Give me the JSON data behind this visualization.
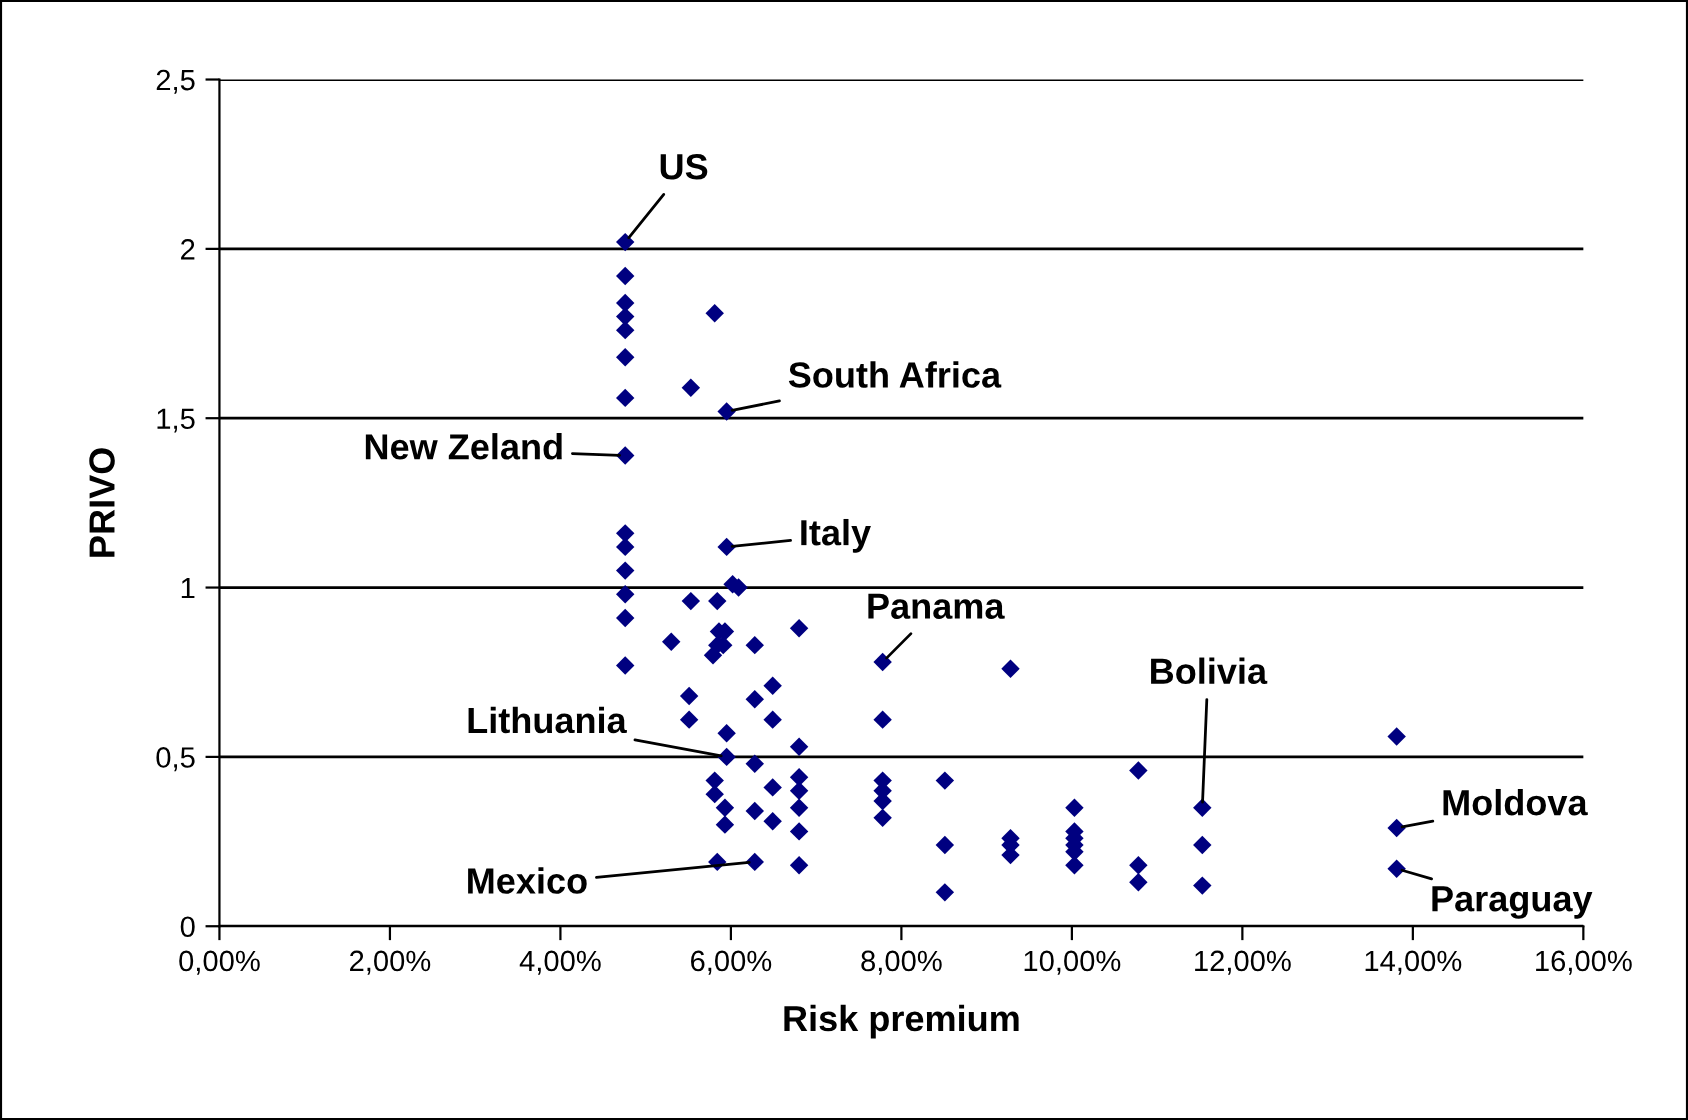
{
  "chart_data": {
    "type": "scatter",
    "xlabel": "Risk premium",
    "ylabel": "PRIVO",
    "series": [
      {
        "color": "#000080",
        "x": [
          4.76,
          4.76,
          4.76,
          4.76,
          4.76,
          4.76,
          4.76,
          4.76,
          4.76,
          4.76,
          4.76,
          4.76,
          4.76,
          4.76,
          5.81,
          5.53,
          5.95,
          5.95,
          5.53,
          5.84,
          6.02,
          6.09,
          5.3,
          5.86,
          5.84,
          5.91,
          5.93,
          5.79,
          6.28,
          6.8,
          5.51,
          5.51,
          6.49,
          6.28,
          6.49,
          5.95,
          5.95,
          6.28,
          6.8,
          5.81,
          5.81,
          5.93,
          5.93,
          6.49,
          6.28,
          6.49,
          6.8,
          6.8,
          6.8,
          6.8,
          6.8,
          6.28,
          5.84,
          7.78,
          7.78,
          7.78,
          7.78,
          7.78,
          7.78,
          8.51,
          8.51,
          8.51,
          9.28,
          9.28,
          9.28,
          9.28,
          10.03,
          10.03,
          10.03,
          10.03,
          10.03,
          10.03,
          10.78,
          10.78,
          10.78,
          11.53,
          11.53,
          11.53,
          13.81,
          13.81,
          13.81
        ],
        "values": [
          2.02,
          1.92,
          1.84,
          1.8,
          1.76,
          1.68,
          1.56,
          1.39,
          1.16,
          1.12,
          1.05,
          0.98,
          0.91,
          0.77,
          1.81,
          1.59,
          1.52,
          1.12,
          0.96,
          0.96,
          1.01,
          1.0,
          0.84,
          0.87,
          0.83,
          0.83,
          0.87,
          0.8,
          0.83,
          0.88,
          0.68,
          0.61,
          0.71,
          0.67,
          0.61,
          0.57,
          0.5,
          0.48,
          0.53,
          0.43,
          0.39,
          0.35,
          0.3,
          0.41,
          0.34,
          0.31,
          0.44,
          0.4,
          0.35,
          0.28,
          0.18,
          0.19,
          0.19,
          0.78,
          0.61,
          0.43,
          0.4,
          0.37,
          0.32,
          0.43,
          0.24,
          0.1,
          0.76,
          0.26,
          0.24,
          0.21,
          0.35,
          0.28,
          0.26,
          0.24,
          0.22,
          0.18,
          0.46,
          0.18,
          0.13,
          0.35,
          0.24,
          0.12,
          0.56,
          0.29,
          0.17
        ]
      }
    ],
    "marker": "diamond",
    "xlim": [
      0,
      16
    ],
    "xticks": [
      {
        "value": 0,
        "label": "0,00%"
      },
      {
        "value": 2,
        "label": "2,00%"
      },
      {
        "value": 4,
        "label": "4,00%"
      },
      {
        "value": 6,
        "label": "6,00%"
      },
      {
        "value": 8,
        "label": "8,00%"
      },
      {
        "value": 10,
        "label": "10,00%"
      },
      {
        "value": 12,
        "label": "12,00%"
      },
      {
        "value": 14,
        "label": "14,00%"
      },
      {
        "value": 16,
        "label": "16,00%"
      }
    ],
    "ylim": [
      0,
      2.5
    ],
    "yticks": [
      0,
      {
        "value": 0.5,
        "label": "0,5"
      },
      1,
      {
        "value": 1.5,
        "label": "1,5"
      },
      2,
      {
        "value": 2.5,
        "label": "2,5"
      }
    ],
    "grid": "y",
    "annotations": [
      {
        "text": "US",
        "x": 4.76,
        "y": 2.02
      },
      {
        "text": "South Africa",
        "x": 5.95,
        "y": 1.52
      },
      {
        "text": "New Zeland",
        "x": 4.76,
        "y": 1.39
      },
      {
        "text": "Italy",
        "x": 5.95,
        "y": 1.12
      },
      {
        "text": "Panama",
        "x": 7.78,
        "y": 0.78
      },
      {
        "text": "Lithuania",
        "x": 5.95,
        "y": 0.5
      },
      {
        "text": "Mexico",
        "x": 6.28,
        "y": 0.19
      },
      {
        "text": "Bolivia",
        "x": 11.53,
        "y": 0.35
      },
      {
        "text": "Moldova",
        "x": 13.81,
        "y": 0.29
      },
      {
        "text": "Paraguay",
        "x": 13.81,
        "y": 0.17
      }
    ]
  }
}
